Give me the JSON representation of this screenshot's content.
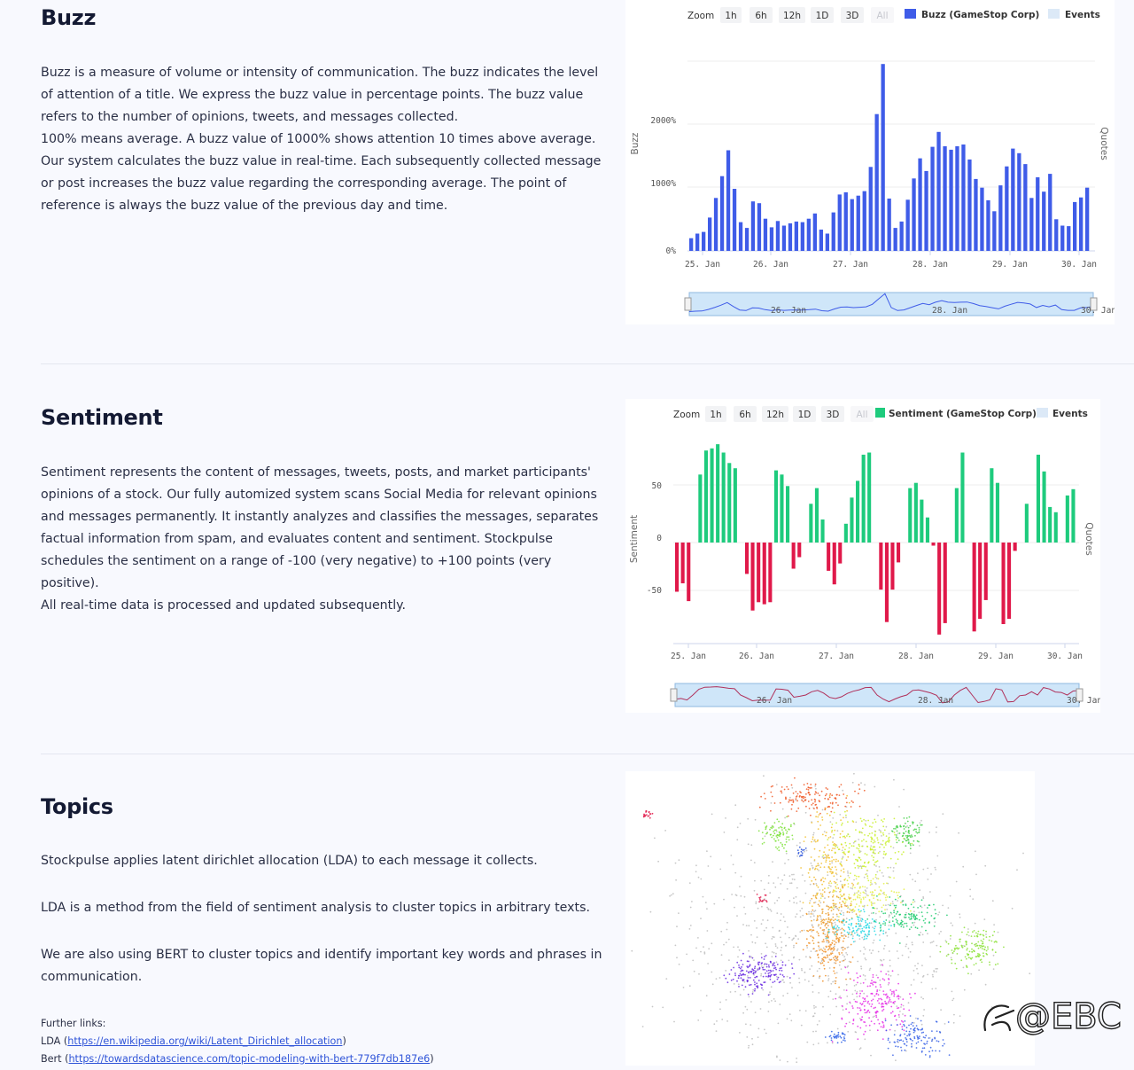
{
  "sections": {
    "buzz": {
      "title": "Buzz",
      "paragraphs": [
        "Buzz is a measure of volume or intensity of communication. The buzz indicates the level of attention of a title. We express the buzz value in percentage points. The buzz value refers to the number of opinions, tweets, and messages collected.",
        "100% means average. A buzz value of 1000% shows attention 10 times above average. Our system calculates the buzz value in real-time. Each subsequently collected message or post increases the buzz value regarding the corresponding average. The point of reference is always the buzz value of the previous day and time."
      ]
    },
    "sentiment": {
      "title": "Sentiment",
      "paragraphs": [
        "Sentiment represents the content of messages, tweets, posts, and market participants' opinions of a stock. Our fully automized system scans Social Media for relevant opinions and messages permanently. It instantly analyzes and classifies the messages, separates factual information from spam, and evaluates content and sentiment. Stockpulse schedules the sentiment on a range of -100 (very negative) to +100 points (very positive).",
        "All real-time data is processed and updated subsequently."
      ]
    },
    "topics": {
      "title": "Topics",
      "paragraphs": [
        "Stockpulse applies latent dirichlet allocation (LDA) to each message it collects.",
        "LDA is a method from the field of sentiment analysis to cluster topics in arbitrary texts.",
        "We are also using BERT to cluster topics and identify important key words and phrases in communication."
      ],
      "links_heading": "Further links:",
      "links": [
        {
          "label": "LDA",
          "open": " (",
          "url": "https://en.wikipedia.org/wiki/Latent_Dirichlet_allocation",
          "close": ")"
        },
        {
          "label": "Bert",
          "open": " (",
          "url": "https://towardsdatascience.com/topic-modeling-with-bert-779f7db187e6",
          "close": ")"
        }
      ]
    }
  },
  "toolbar": {
    "zoom_label": "Zoom",
    "buttons": [
      "1h",
      "6h",
      "12h",
      "1D",
      "3D",
      "All"
    ],
    "events_label": "Events"
  },
  "watermark": "@EBC",
  "colors": {
    "buzz_bar": "#3f5ce8",
    "sentiment_positive": "#1ecb7d",
    "sentiment_negative": "#e0194a",
    "navigator_fill": "#cfe6f9",
    "navigator_border": "#8fb8e0",
    "events_legend": "#dce9f7"
  },
  "chart_data": [
    {
      "type": "bar",
      "legend": "Buzz (GameStop Corp)",
      "ylabel": "Buzz",
      "right_label": "Quotes",
      "y_ticks": [
        "0%",
        "1000%",
        "2000%"
      ],
      "ylim": [
        0,
        3300
      ],
      "x_ticks": [
        "25. Jan",
        "26. Jan",
        "27. Jan",
        "28. Jan",
        "29. Jan",
        "30. Jan"
      ],
      "navigator_labels": [
        "26. Jan",
        "28. Jan",
        "30. Jan"
      ],
      "values": [
        220,
        300,
        330,
        580,
        920,
        1300,
        1750,
        1080,
        500,
        400,
        860,
        830,
        560,
        410,
        520,
        440,
        480,
        510,
        500,
        560,
        650,
        370,
        300,
        670,
        980,
        1020,
        900,
        960,
        1040,
        1460,
        2380,
        3250,
        910,
        400,
        510,
        890,
        1260,
        1610,
        1390,
        1810,
        2070,
        1820,
        1760,
        1820,
        1850,
        1590,
        1250,
        1100,
        880,
        690,
        1140,
        1470,
        1780,
        1700,
        1510,
        920,
        1280,
        1030,
        1340,
        550,
        440,
        430,
        850,
        930,
        1100
      ]
    },
    {
      "type": "bar",
      "legend": "Sentiment (GameStop Corp)",
      "ylabel": "Sentiment",
      "right_label": "Quotes",
      "y_ticks": [
        "50",
        "0",
        "-50"
      ],
      "ylim": [
        -100,
        100
      ],
      "x_ticks": [
        "25. Jan",
        "26. Jan",
        "27. Jan",
        "28. Jan",
        "29. Jan",
        "30. Jan"
      ],
      "navigator_labels": [
        "26. Jan",
        "28. Jan",
        "30. Jan"
      ],
      "values": [
        -47,
        -39,
        -56,
        0,
        65,
        88,
        90,
        94,
        86,
        76,
        71,
        0,
        -30,
        -65,
        -57,
        -59,
        -57,
        69,
        65,
        54,
        -25,
        -14,
        0,
        37,
        52,
        22,
        -27,
        -40,
        -20,
        18,
        43,
        59,
        84,
        86,
        0,
        -45,
        -76,
        -45,
        -19,
        0,
        52,
        57,
        41,
        24,
        -3,
        -88,
        -77,
        0,
        52,
        86,
        0,
        -85,
        -73,
        -55,
        71,
        57,
        -78,
        -73,
        -8,
        0,
        37,
        0,
        84,
        68,
        34,
        29,
        0,
        45,
        51
      ]
    }
  ]
}
